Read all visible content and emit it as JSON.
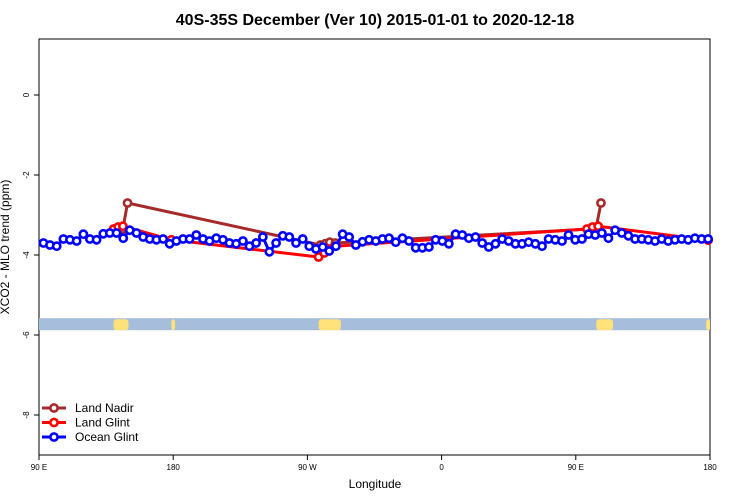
{
  "chart_data": {
    "type": "line",
    "title": "40S-35S December (Ver 10)   2015-01-01 to 2020-12-18",
    "xlabel": "Longitude",
    "ylabel": "XCO2 - MLO trend (ppm)",
    "xlim": [
      90,
      450
    ],
    "ylim": [
      -9,
      1.4
    ],
    "x_ticks": [
      {
        "value": 90,
        "label": "90 E"
      },
      {
        "value": 162,
        "label": "180"
      },
      {
        "value": 234,
        "label": "90 W"
      },
      {
        "value": 306,
        "label": "0"
      },
      {
        "value": 378,
        "label": "90 E"
      },
      {
        "value": 450,
        "label": "180"
      }
    ],
    "y_ticks": [
      {
        "value": 0,
        "label": "0"
      },
      {
        "value": -2,
        "label": "-2"
      },
      {
        "value": -4,
        "label": "-4"
      },
      {
        "value": -6,
        "label": "-6"
      },
      {
        "value": -8,
        "label": "-8"
      }
    ],
    "grid": false,
    "legend_position": "bottom-left",
    "land_band": {
      "y_from": -5.58,
      "y_to": -5.88,
      "ocean_color": "#a6bddb",
      "land_color": "#ffe27a",
      "land_ranges": [
        [
          130,
          138
        ],
        [
          161,
          163
        ],
        [
          240,
          252
        ],
        [
          389,
          398
        ],
        [
          448,
          450
        ]
      ]
    },
    "series": [
      {
        "name": "Land Nadir",
        "color": "#a52a2a",
        "x": [
          135,
          137.5,
          241,
          243.5,
          246,
          249,
          386,
          389,
          391.5
        ],
        "y": [
          -3.35,
          -2.7,
          -3.75,
          -3.72,
          -3.68,
          -3.7,
          -3.35,
          -3.3,
          -2.7
        ]
      },
      {
        "name": "Land Glint",
        "color": "#ff0000",
        "x": [
          130,
          132.5,
          135,
          161,
          240,
          243,
          246,
          249,
          384,
          387,
          390,
          449
        ],
        "y": [
          -3.35,
          -3.3,
          -3.28,
          -3.62,
          -4.05,
          -3.95,
          -3.85,
          -3.78,
          -3.35,
          -3.3,
          -3.28,
          -3.63
        ]
      },
      {
        "name": "Ocean Glint",
        "color": "#0000ff",
        "x": [
          92.4,
          95.9,
          99.5,
          103.1,
          106.6,
          110.2,
          113.8,
          117.3,
          120.9,
          124.5,
          128.0,
          131.6,
          135.2,
          138.7,
          142.3,
          145.9,
          149.4,
          153.0,
          156.6,
          160.1,
          163.7,
          167.3,
          170.8,
          174.4,
          178.0,
          181.5,
          185.1,
          188.7,
          192.2,
          195.8,
          199.4,
          202.9,
          206.5,
          210.1,
          213.6,
          217.2,
          220.8,
          224.3,
          227.9,
          231.5,
          235.0,
          238.6,
          242.2,
          245.7,
          249.3,
          252.9,
          256.4,
          260.0,
          263.6,
          267.1,
          270.7,
          274.3,
          277.8,
          281.4,
          285.0,
          288.5,
          292.1,
          295.7,
          299.2,
          302.8,
          306.4,
          309.9,
          313.5,
          317.1,
          320.6,
          324.2,
          327.8,
          331.3,
          334.9,
          338.5,
          342.0,
          345.6,
          349.2,
          352.7,
          356.3,
          359.9,
          363.4,
          367.0,
          370.6,
          374.1,
          377.7,
          381.3,
          384.8,
          388.4,
          392.0,
          395.5,
          399.1,
          402.7,
          406.2,
          409.8,
          413.4,
          416.9,
          420.5,
          424.1,
          427.6,
          431.2,
          434.8,
          438.3,
          441.9,
          445.5,
          449.0
        ],
        "y": [
          -3.7,
          -3.75,
          -3.78,
          -3.6,
          -3.62,
          -3.65,
          -3.48,
          -3.6,
          -3.62,
          -3.47,
          -3.45,
          -3.45,
          -3.58,
          -3.38,
          -3.45,
          -3.55,
          -3.6,
          -3.62,
          -3.6,
          -3.72,
          -3.65,
          -3.6,
          -3.6,
          -3.5,
          -3.6,
          -3.65,
          -3.58,
          -3.62,
          -3.7,
          -3.72,
          -3.65,
          -3.78,
          -3.7,
          -3.55,
          -3.92,
          -3.7,
          -3.52,
          -3.55,
          -3.7,
          -3.6,
          -3.78,
          -3.85,
          -3.8,
          -3.9,
          -3.78,
          -3.48,
          -3.55,
          -3.75,
          -3.67,
          -3.62,
          -3.65,
          -3.6,
          -3.58,
          -3.68,
          -3.58,
          -3.65,
          -3.82,
          -3.82,
          -3.8,
          -3.62,
          -3.65,
          -3.72,
          -3.48,
          -3.5,
          -3.58,
          -3.55,
          -3.7,
          -3.8,
          -3.72,
          -3.6,
          -3.65,
          -3.72,
          -3.72,
          -3.68,
          -3.72,
          -3.78,
          -3.6,
          -3.62,
          -3.65,
          -3.5,
          -3.62,
          -3.6,
          -3.48,
          -3.5,
          -3.45,
          -3.58,
          -3.38,
          -3.45,
          -3.52,
          -3.6,
          -3.6,
          -3.62,
          -3.65,
          -3.6,
          -3.65,
          -3.62,
          -3.6,
          -3.62,
          -3.58,
          -3.6,
          -3.6
        ]
      }
    ]
  }
}
